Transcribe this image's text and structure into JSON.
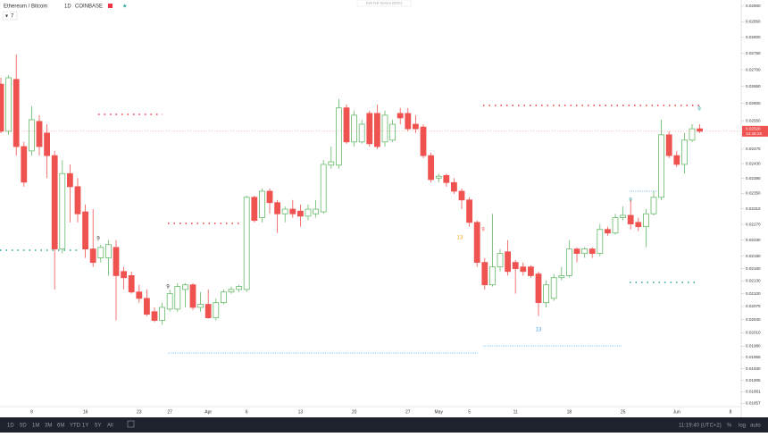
{
  "chart_data": {
    "type": "candlestick",
    "title": "Ethereum / Bitcoin",
    "interval": "1D",
    "exchange": "COINBASE",
    "indicator_count": "7",
    "categories": [
      null,
      null,
      null,
      null,
      "9",
      null,
      null,
      null,
      null,
      null,
      null,
      "16",
      null,
      null,
      null,
      null,
      null,
      null,
      "23",
      null,
      null,
      null,
      "27",
      null,
      null,
      null,
      null,
      "Apr",
      null,
      null,
      null,
      null,
      "6",
      null,
      null,
      null,
      null,
      null,
      null,
      "13",
      null,
      null,
      null,
      null,
      null,
      null,
      "20",
      null,
      null,
      null,
      null,
      null,
      null,
      "27",
      null,
      null,
      null,
      "May",
      null,
      null,
      null,
      "5",
      null,
      null,
      null,
      null,
      null,
      "11",
      null,
      null,
      null,
      null,
      null,
      null,
      "18",
      null,
      null,
      null,
      null,
      null,
      null,
      "25",
      null,
      null,
      null,
      null,
      null,
      null,
      "Jun",
      null,
      null,
      null,
      null,
      null,
      null,
      "8"
    ],
    "open": [
      0.02657,
      0.0252,
      0.02671,
      0.02477,
      0.02465,
      0.02548,
      0.02515,
      0.02452,
      0.02208,
      0.02403,
      0.02368,
      0.02302,
      0.02208,
      0.02186,
      0.02186,
      0.02212,
      0.02153,
      0.02143,
      0.02104,
      0.02089,
      0.02058,
      0.02038,
      0.02064,
      0.02064,
      0.0211,
      0.02121,
      0.02068,
      0.02075,
      0.02044,
      0.02079,
      0.02104,
      0.0211,
      0.0211,
      0.0234,
      0.02287,
      0.02356,
      0.02326,
      0.02297,
      0.02309,
      0.02304,
      0.02291,
      0.02297,
      0.02302,
      0.02426,
      0.02426,
      0.02587,
      0.0249,
      0.0249,
      0.02571,
      0.02571,
      0.0249,
      0.02495,
      0.02571,
      0.02571,
      0.0254,
      0.02532,
      0.02452,
      0.02391,
      0.02398,
      0.02379,
      0.02356,
      0.02333,
      0.02275,
      0.02175,
      0.02121,
      0.02164,
      0.02201,
      0.02175,
      0.02164,
      0.02164,
      0.02147,
      0.02079,
      0.02089,
      0.02138,
      0.02143,
      0.02208,
      0.02197,
      0.02208,
      0.02197,
      0.02257,
      0.02248,
      0.02287,
      0.02293,
      0.02275,
      0.02264,
      0.02297,
      0.0234,
      0.0251,
      0.02452,
      0.02428,
      0.02495,
      0.02527,
      null,
      null,
      null,
      null
    ],
    "high": [
      0.02676,
      0.02684,
      0.02747,
      0.0249,
      0.02592,
      0.02566,
      0.0254,
      0.02465,
      0.0244,
      0.02428,
      0.02391,
      0.02321,
      0.02309,
      0.02219,
      0.0223,
      0.0223,
      0.02164,
      0.02153,
      0.02121,
      0.0211,
      0.02068,
      0.02079,
      0.0211,
      0.02125,
      0.02125,
      0.02125,
      0.02104,
      0.0211,
      0.02089,
      0.0211,
      0.02117,
      0.02121,
      0.02344,
      0.02344,
      0.02363,
      0.02363,
      0.02333,
      0.02316,
      0.02333,
      0.02321,
      0.02321,
      0.02333,
      0.0244,
      0.02477,
      0.02613,
      0.02597,
      0.02579,
      0.02553,
      0.02579,
      0.02597,
      0.02579,
      0.02553,
      0.02587,
      0.02587,
      0.02566,
      0.0254,
      0.0246,
      0.02403,
      0.02403,
      0.02391,
      0.02363,
      0.0234,
      0.0228,
      0.02186,
      0.02297,
      0.02208,
      0.0223,
      0.02181,
      0.02175,
      0.02168,
      0.02153,
      0.02132,
      0.02147,
      0.02164,
      0.0223,
      0.02212,
      0.02212,
      0.02212,
      0.02271,
      0.02264,
      0.02297,
      0.02316,
      0.02333,
      0.02287,
      0.02309,
      0.02356,
      0.02553,
      0.0252,
      0.02465,
      0.02515,
      0.0254,
      0.0254,
      null,
      null,
      null,
      null
    ],
    "low": [
      0.02515,
      0.0251,
      0.02452,
      0.02368,
      0.02452,
      0.02452,
      0.02391,
      0.0211,
      0.02197,
      0.02275,
      0.02275,
      0.02186,
      0.02164,
      0.02175,
      0.02143,
      0.02038,
      0.0211,
      0.021,
      0.02079,
      0.02048,
      0.02034,
      0.02028,
      0.02058,
      0.02058,
      0.02068,
      0.02062,
      0.02058,
      0.02042,
      0.02038,
      0.02075,
      0.021,
      0.02104,
      0.02104,
      0.02275,
      0.02275,
      0.02297,
      0.02248,
      0.02275,
      0.02287,
      0.02264,
      0.0228,
      0.02287,
      0.02297,
      0.02416,
      0.02416,
      0.02485,
      0.02477,
      0.02485,
      0.02477,
      0.0247,
      0.02477,
      0.0249,
      0.0254,
      0.0252,
      0.02515,
      0.02445,
      0.02379,
      0.02379,
      0.02368,
      0.02349,
      0.02309,
      0.02264,
      0.02164,
      0.0211,
      0.02117,
      0.02153,
      0.02143,
      0.021,
      0.02143,
      0.02138,
      0.02048,
      0.02068,
      0.02083,
      0.02132,
      0.02138,
      0.02175,
      0.02186,
      0.02186,
      0.0219,
      0.02241,
      0.02244,
      0.0228,
      0.02257,
      0.02253,
      0.02212,
      0.02293,
      0.02333,
      0.02445,
      0.02421,
      0.02403,
      0.0249,
      0.02515,
      null,
      null,
      null,
      null
    ],
    "close": [
      0.0252,
      0.02676,
      0.02477,
      0.0238,
      0.02553,
      0.02477,
      0.02452,
      0.02208,
      0.02403,
      0.02368,
      0.02297,
      0.02208,
      0.02175,
      0.02212,
      0.02219,
      0.02143,
      0.02138,
      0.02104,
      0.02089,
      0.02052,
      0.02038,
      0.02068,
      0.021,
      0.02117,
      0.02121,
      0.02068,
      0.02075,
      0.02044,
      0.02079,
      0.02104,
      0.0211,
      0.02117,
      0.0234,
      0.0228,
      0.02356,
      0.02326,
      0.02297,
      0.02309,
      0.02297,
      0.02291,
      0.02309,
      0.02309,
      0.02428,
      0.02435,
      0.02587,
      0.0249,
      0.02566,
      0.0254,
      0.02485,
      0.02477,
      0.02566,
      0.0254,
      0.02558,
      0.02527,
      0.02527,
      0.02452,
      0.02387,
      0.02396,
      0.02379,
      0.02356,
      0.02333,
      0.02275,
      0.02175,
      0.02121,
      0.02164,
      0.02197,
      0.02153,
      0.0216,
      0.02153,
      0.02143,
      0.02079,
      0.02121,
      0.02138,
      0.02143,
      0.02208,
      0.02197,
      0.02208,
      0.02197,
      0.02257,
      0.02248,
      0.02287,
      0.02293,
      0.02271,
      0.02264,
      0.02297,
      0.0234,
      0.0251,
      0.02452,
      0.02428,
      0.02495,
      0.02527,
      0.0252,
      null,
      null,
      null,
      null
    ],
    "up_color": "#66bb6a",
    "down_color": "#ef5350",
    "log_scale": true,
    "grid": false,
    "ylim": [
      0.0185,
      0.0292
    ],
    "yticks": [
      {
        "value": 0.029,
        "label": "0.02900"
      },
      {
        "value": 0.0285,
        "label": "0.02850"
      },
      {
        "value": 0.028,
        "label": "0.02800"
      },
      {
        "value": 0.0275,
        "label": "0.02750"
      },
      {
        "value": 0.027,
        "label": "0.02700"
      },
      {
        "value": 0.0265,
        "label": "0.02650"
      },
      {
        "value": 0.026,
        "label": "0.02600"
      },
      {
        "value": 0.0255,
        "label": "0.02550"
      },
      {
        "value": 0.0251,
        "label": "0.02510"
      },
      {
        "value": 0.0247,
        "label": "0.02470"
      },
      {
        "value": 0.0243,
        "label": "0.02430"
      },
      {
        "value": 0.0239,
        "label": "0.02390"
      },
      {
        "value": 0.0235,
        "label": "0.02350"
      },
      {
        "value": 0.0231,
        "label": "0.02310"
      },
      {
        "value": 0.0227,
        "label": "0.02270"
      },
      {
        "value": 0.0223,
        "label": "0.02230"
      },
      {
        "value": 0.0219,
        "label": "0.02190"
      },
      {
        "value": 0.0216,
        "label": "0.02160"
      },
      {
        "value": 0.0213,
        "label": "0.02130"
      },
      {
        "value": 0.021,
        "label": "0.02100"
      },
      {
        "value": 0.0207,
        "label": "0.02070"
      },
      {
        "value": 0.0204,
        "label": "0.02040"
      },
      {
        "value": 0.0201,
        "label": "0.02010"
      },
      {
        "value": 0.0198,
        "label": "0.01980"
      },
      {
        "value": 0.01955,
        "label": "0.01955"
      },
      {
        "value": 0.0193,
        "label": "0.01930"
      },
      {
        "value": 0.01905,
        "label": "0.01905"
      },
      {
        "value": 0.01881,
        "label": "0.01881"
      },
      {
        "value": 0.01857,
        "label": "0.01857"
      }
    ],
    "price_tag": {
      "value": 0.0252,
      "label": "0.02520"
    },
    "countdown": "14:40:19",
    "annotations": [
      {
        "text": "9"
      },
      {
        "text": "9"
      },
      {
        "text": "13"
      },
      {
        "text": "9"
      },
      {
        "text": "13"
      },
      {
        "text": "9"
      },
      {
        "text": "9"
      }
    ]
  },
  "ui": {
    "exit_fullscreen": "Exit Full Screen (ESC)",
    "ranges": [
      "1D",
      "5D",
      "1M",
      "3M",
      "6M",
      "YTD",
      "1Y",
      "5Y",
      "All"
    ],
    "clock": "11:19:40 (UTC+2)",
    "toggles": [
      "%",
      "log",
      "auto"
    ]
  }
}
